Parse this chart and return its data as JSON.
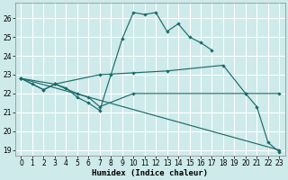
{
  "xlabel": "Humidex (Indice chaleur)",
  "line_color": "#1c6b6b",
  "bg_color": "#ceeaea",
  "grid_color": "#ffffff",
  "xlim": [
    -0.5,
    23.5
  ],
  "ylim": [
    18.7,
    26.8
  ],
  "yticks": [
    19,
    20,
    21,
    22,
    23,
    24,
    25,
    26
  ],
  "xticks": [
    0,
    1,
    2,
    3,
    4,
    5,
    6,
    7,
    8,
    9,
    10,
    11,
    12,
    13,
    14,
    15,
    16,
    17,
    18,
    19,
    20,
    21,
    22,
    23
  ],
  "line1_x": [
    0,
    1,
    2,
    3,
    4,
    5,
    6,
    7,
    8,
    9,
    10,
    11,
    12,
    13,
    14,
    15,
    16,
    17
  ],
  "line1_y": [
    22.8,
    22.5,
    22.2,
    22.5,
    22.3,
    21.8,
    21.5,
    21.1,
    23.0,
    24.9,
    26.3,
    26.2,
    26.3,
    25.3,
    25.7,
    25.0,
    24.7,
    24.3
  ],
  "line2_x": [
    0,
    3,
    7,
    10,
    13,
    18,
    20,
    21,
    22,
    23
  ],
  "line2_y": [
    22.8,
    22.5,
    23.0,
    23.1,
    23.2,
    23.5,
    22.0,
    21.3,
    19.4,
    18.9
  ],
  "line3_x": [
    0,
    2,
    3,
    5,
    6,
    7,
    10,
    20,
    23
  ],
  "line3_y": [
    22.8,
    22.2,
    22.5,
    22.0,
    21.8,
    21.3,
    22.0,
    22.0,
    22.0
  ],
  "line4_x": [
    0,
    23
  ],
  "line4_y": [
    22.8,
    19.0
  ]
}
